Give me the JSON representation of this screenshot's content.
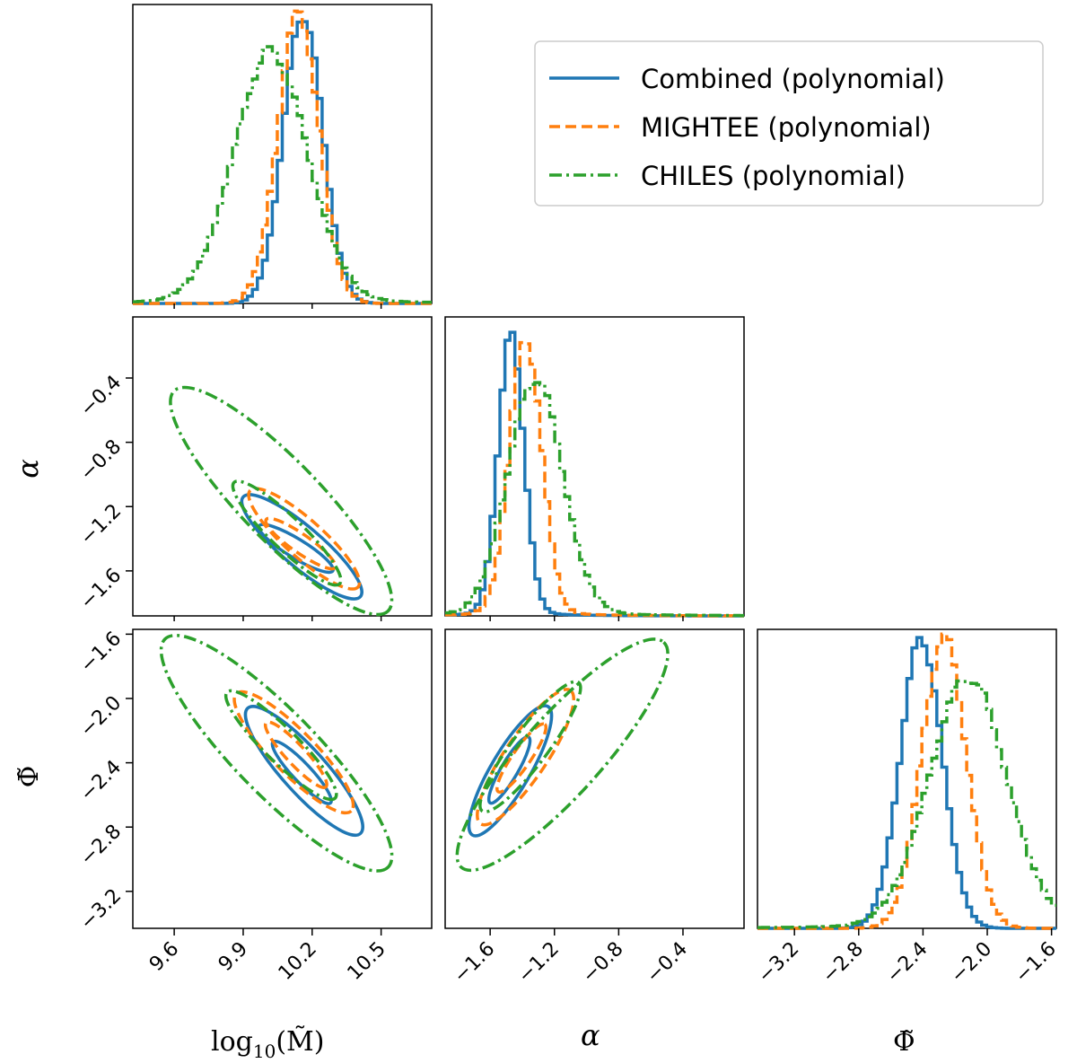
{
  "colors": {
    "combined": "#1f77b4",
    "mightee": "#ff7f0e",
    "chiles": "#2ca02c"
  },
  "legend": {
    "entries": [
      {
        "key": "combined",
        "label": "Combined (polynomial)",
        "dash": "solid"
      },
      {
        "key": "mightee",
        "label": "MIGHTEE (polynomial)",
        "dash": "dashed"
      },
      {
        "key": "chiles",
        "label": "CHILES (polynomial)",
        "dash": "dashdot"
      }
    ]
  },
  "axis_labels": {
    "logM": "log10(M̃)",
    "logM_base": "log",
    "logM_sub": "10",
    "logM_arg": "(M̃)",
    "alpha": "α",
    "phi": "Φ̃"
  },
  "chart_data": {
    "type": "corner",
    "parameters": [
      "log10(M̃)",
      "α",
      "Φ̃"
    ],
    "ranges": {
      "logM": [
        9.42,
        10.72
      ],
      "alpha": [
        -1.88,
        -0.02
      ],
      "phi": [
        -3.43,
        -1.57
      ]
    },
    "ticks": {
      "logM": [
        "9.6",
        "9.9",
        "10.2",
        "10.5"
      ],
      "alpha": [
        "−1.6",
        "−1.2",
        "−0.8",
        "−0.4"
      ],
      "phi": [
        "−3.2",
        "−2.8",
        "−2.4",
        "−2.0",
        "−1.6"
      ]
    },
    "tick_values": {
      "logM": [
        9.6,
        9.9,
        10.2,
        10.5
      ],
      "alpha": [
        -1.6,
        -1.2,
        -0.8,
        -0.4
      ],
      "phi": [
        -3.2,
        -2.8,
        -2.4,
        -2.0,
        -1.6
      ]
    },
    "series": [
      {
        "name": "Combined (polynomial)",
        "key": "combined",
        "peaks": {
          "logM": 10.16,
          "alpha": -1.47,
          "phi": -2.41
        },
        "sigmas": {
          "logM": 0.085,
          "alpha": 0.08,
          "phi": 0.13
        },
        "contours": [
          {
            "pair": "logM-alpha",
            "center": [
              10.16,
              -1.45
            ],
            "inner_half_range": [
              [
                9.97,
                10.29
              ],
              [
                -1.32,
                -1.6
              ]
            ],
            "outer_half_range": [
              [
                9.9,
                10.41
              ],
              [
                -1.14,
                -1.76
              ]
            ]
          },
          {
            "pair": "logM-phi",
            "center": [
              10.16,
              -2.45
            ],
            "inner_half_range": [
              [
                10.03,
                10.28
              ],
              [
                -2.27,
                -2.65
              ]
            ],
            "outer_half_range": [
              [
                9.92,
                10.41
              ],
              [
                -2.06,
                -2.84
              ]
            ]
          },
          {
            "pair": "alpha-phi",
            "center": [
              -1.47,
              -2.45
            ],
            "inner_half_range": [
              [
                -1.6,
                -1.36
              ],
              [
                -2.65,
                -2.24
              ]
            ],
            "outer_half_range": [
              [
                -1.71,
                -1.24
              ],
              [
                -2.85,
                -2.05
              ]
            ]
          }
        ]
      },
      {
        "name": "MIGHTEE (polynomial)",
        "key": "mightee",
        "peaks": {
          "logM": 10.14,
          "alpha": -1.38,
          "phi": -2.27
        },
        "sigmas": {
          "logM": 0.09,
          "alpha": 0.1,
          "phi": 0.14
        },
        "contours": [
          {
            "pair": "logM-alpha",
            "center": [
              10.15,
              -1.42
            ],
            "inner_half_range": [
              [
                10.0,
                10.3
              ],
              [
                -1.28,
                -1.58
              ]
            ],
            "outer_half_range": [
              [
                9.93,
                10.4
              ],
              [
                -1.1,
                -1.7
              ]
            ]
          },
          {
            "pair": "logM-phi",
            "center": [
              10.13,
              -2.35
            ],
            "inner_half_range": [
              [
                10.0,
                10.26
              ],
              [
                -2.15,
                -2.55
              ]
            ],
            "outer_half_range": [
              [
                9.87,
                10.37
              ],
              [
                -1.97,
                -2.7
              ]
            ]
          },
          {
            "pair": "alpha-phi",
            "center": [
              -1.4,
              -2.38
            ],
            "inner_half_range": [
              [
                -1.55,
                -1.26
              ],
              [
                -2.58,
                -2.16
              ]
            ],
            "outer_half_range": [
              [
                -1.66,
                -1.1
              ],
              [
                -2.78,
                -1.95
              ]
            ]
          }
        ]
      },
      {
        "name": "CHILES (polynomial)",
        "key": "chiles",
        "peaks": {
          "logM": 10.02,
          "alpha": -1.32,
          "phi": -2.12
        },
        "sigmas": {
          "logM": 0.16,
          "alpha": 0.17,
          "phi": 0.24
        },
        "contours": [
          {
            "pair": "logM-alpha",
            "center": [
              10.08,
              -1.35
            ],
            "inner_half_range": [
              [
                9.86,
                10.32
              ],
              [
                -1.05,
                -1.68
              ]
            ],
            "outer_half_range": [
              [
                9.6,
                10.53
              ],
              [
                -0.48,
                -1.85
              ]
            ]
          },
          {
            "pair": "logM-phi",
            "center": [
              10.05,
              -2.35
            ],
            "inner_half_range": [
              [
                9.83,
                10.3
              ],
              [
                -1.96,
                -2.62
              ]
            ],
            "outer_half_range": [
              [
                9.56,
                10.53
              ],
              [
                -1.63,
                -3.05
              ]
            ]
          },
          {
            "pair": "alpha-phi",
            "center": [
              -1.35,
              -2.35
            ],
            "inner_half_range": [
              [
                -1.65,
                -1.05
              ],
              [
                -2.7,
                -1.9
              ]
            ],
            "outer_half_range": [
              [
                -1.78,
                -0.52
              ],
              [
                -3.05,
                -1.65
              ]
            ]
          }
        ]
      }
    ]
  }
}
